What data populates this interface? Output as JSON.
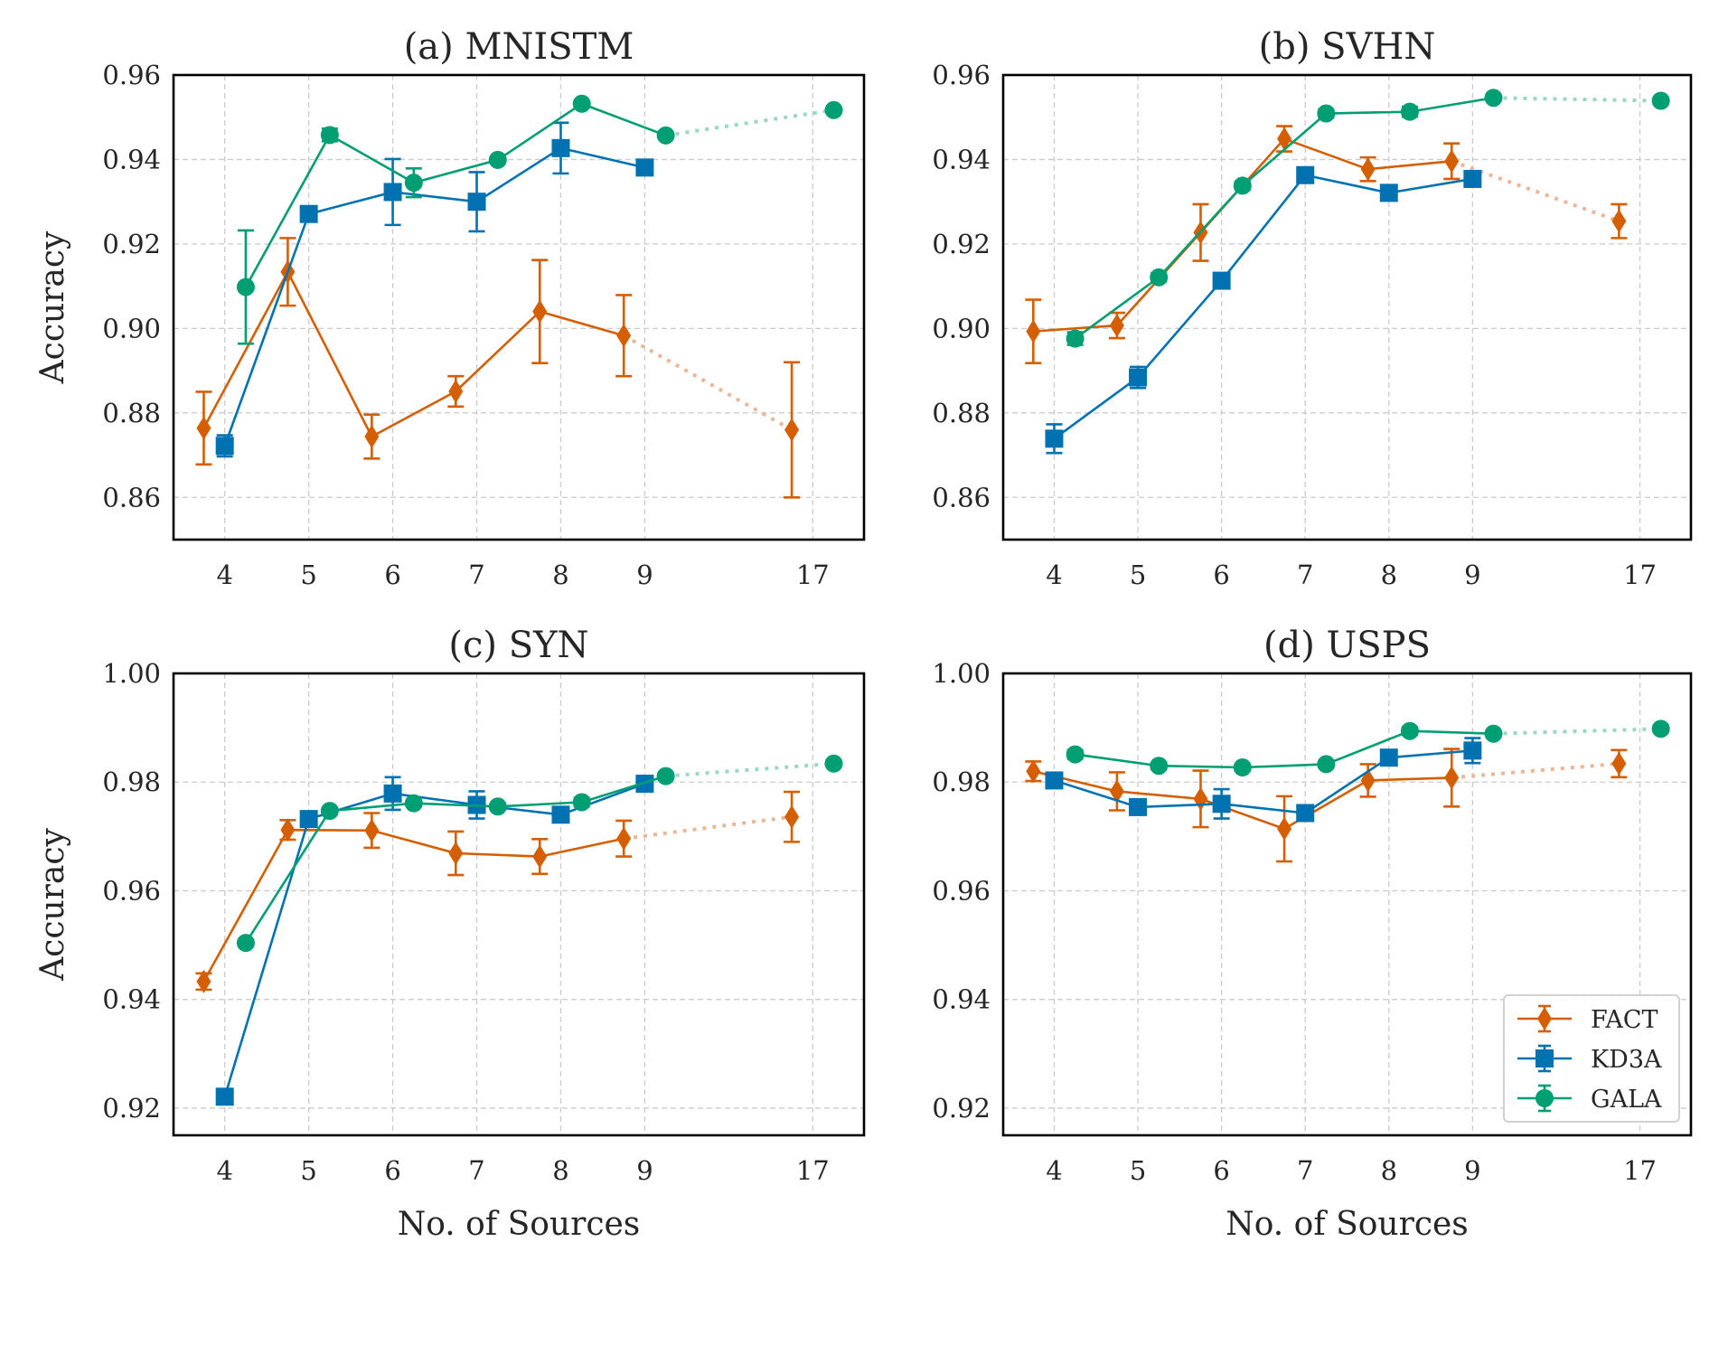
{
  "chart_data": [
    {
      "type": "line",
      "title": "(a) MNISTM",
      "xlabel": "",
      "ylabel": "Accuracy",
      "x_ticks": [
        "4",
        "5",
        "6",
        "7",
        "8",
        "9",
        "17"
      ],
      "y_ticks": [
        "0.86",
        "0.88",
        "0.90",
        "0.92",
        "0.94",
        "0.96"
      ],
      "ylim": [
        0.85,
        0.96
      ],
      "grid": true,
      "legend": null,
      "series": [
        {
          "name": "FACT",
          "x": [
            "4",
            "5",
            "6",
            "7",
            "8",
            "9",
            "17"
          ],
          "values": [
            0.8764,
            0.9134,
            0.8744,
            0.8851,
            0.904,
            0.8983,
            0.876
          ],
          "errors": [
            0.0086,
            0.008,
            0.0052,
            0.0036,
            0.0122,
            0.0096,
            0.016
          ]
        },
        {
          "name": "KD3A",
          "x": [
            "4",
            "5",
            "6",
            "7",
            "8",
            "9"
          ],
          "values": [
            0.8722,
            0.9271,
            0.9323,
            0.93,
            0.9427,
            0.9381
          ],
          "errors": [
            0.0025,
            0.0008,
            0.0078,
            0.007,
            0.006,
            0.0012
          ]
        },
        {
          "name": "GALA",
          "x": [
            "4",
            "5",
            "6",
            "7",
            "8",
            "9",
            "17"
          ],
          "values": [
            0.9098,
            0.9458,
            0.9345,
            0.9399,
            0.9532,
            0.9457,
            0.9517
          ],
          "errors": [
            0.0134,
            0.0015,
            0.0034,
            0.0006,
            0.0006,
            0.0006,
            0.0006
          ]
        }
      ]
    },
    {
      "type": "line",
      "title": "(b) SVHN",
      "xlabel": "",
      "ylabel": "",
      "x_ticks": [
        "4",
        "5",
        "6",
        "7",
        "8",
        "9",
        "17"
      ],
      "y_ticks": [
        "0.86",
        "0.88",
        "0.90",
        "0.92",
        "0.94",
        "0.96"
      ],
      "ylim": [
        0.85,
        0.96
      ],
      "grid": true,
      "legend": null,
      "series": [
        {
          "name": "FACT",
          "x": [
            "4",
            "5",
            "6",
            "7",
            "8",
            "9",
            "17"
          ],
          "values": [
            0.8993,
            0.9007,
            0.9227,
            0.9449,
            0.9377,
            0.9396,
            0.9254
          ],
          "errors": [
            0.0075,
            0.003,
            0.0067,
            0.003,
            0.0028,
            0.0042,
            0.004
          ]
        },
        {
          "name": "KD3A",
          "x": [
            "4",
            "5",
            "6",
            "7",
            "8",
            "9"
          ],
          "values": [
            0.8739,
            0.8884,
            0.9113,
            0.9363,
            0.9321,
            0.9354
          ],
          "errors": [
            0.0034,
            0.0025,
            0.0006,
            0.0015,
            0.0006,
            0.0006
          ]
        },
        {
          "name": "GALA",
          "x": [
            "4",
            "5",
            "6",
            "7",
            "8",
            "9",
            "17"
          ],
          "values": [
            0.8976,
            0.9121,
            0.9338,
            0.9509,
            0.9513,
            0.9546,
            0.9539
          ],
          "errors": [
            0.0015,
            0.001,
            0.001,
            0.001,
            0.0012,
            0.0006,
            0.0008
          ]
        }
      ]
    },
    {
      "type": "line",
      "title": "(c) SYN",
      "xlabel": "No. of Sources",
      "ylabel": "Accuracy",
      "x_ticks": [
        "4",
        "5",
        "6",
        "7",
        "8",
        "9",
        "17"
      ],
      "y_ticks": [
        "0.92",
        "0.94",
        "0.96",
        "0.98",
        "1.00"
      ],
      "ylim": [
        0.915,
        1.0
      ],
      "grid": true,
      "legend": null,
      "series": [
        {
          "name": "FACT",
          "x": [
            "4",
            "5",
            "6",
            "7",
            "8",
            "9",
            "17"
          ],
          "values": [
            0.9433,
            0.9712,
            0.9711,
            0.9669,
            0.9663,
            0.9696,
            0.9736
          ],
          "errors": [
            0.0015,
            0.0018,
            0.0032,
            0.004,
            0.0032,
            0.0033,
            0.0046
          ]
        },
        {
          "name": "KD3A",
          "x": [
            "4",
            "5",
            "6",
            "7",
            "8",
            "9"
          ],
          "values": [
            0.9221,
            0.9732,
            0.9779,
            0.9758,
            0.974,
            0.9797
          ],
          "errors": [
            0.0013,
            0.0006,
            0.003,
            0.0025,
            0.0008,
            0.0006
          ]
        },
        {
          "name": "GALA",
          "x": [
            "4",
            "5",
            "6",
            "7",
            "8",
            "9",
            "17"
          ],
          "values": [
            0.9504,
            0.9747,
            0.9761,
            0.9755,
            0.9763,
            0.9811,
            0.9834
          ],
          "errors": [
            0.0006,
            0.0006,
            0.0006,
            0.0006,
            0.0008,
            0.0006,
            0.0006
          ]
        }
      ]
    },
    {
      "type": "line",
      "title": "(d) USPS",
      "xlabel": "No. of Sources",
      "ylabel": "",
      "x_ticks": [
        "4",
        "5",
        "6",
        "7",
        "8",
        "9",
        "17"
      ],
      "y_ticks": [
        "0.92",
        "0.94",
        "0.96",
        "0.98",
        "1.00"
      ],
      "ylim": [
        0.915,
        1.0
      ],
      "grid": true,
      "legend": "lower-right",
      "series": [
        {
          "name": "FACT",
          "x": [
            "4",
            "5",
            "6",
            "7",
            "8",
            "9",
            "17"
          ],
          "values": [
            0.982,
            0.9783,
            0.9769,
            0.9714,
            0.9803,
            0.9808,
            0.9834
          ],
          "errors": [
            0.0018,
            0.0035,
            0.0052,
            0.006,
            0.003,
            0.0053,
            0.0025
          ]
        },
        {
          "name": "KD3A",
          "x": [
            "4",
            "5",
            "6",
            "7",
            "8",
            "9"
          ],
          "values": [
            0.9803,
            0.9754,
            0.976,
            0.9743,
            0.9845,
            0.9858
          ],
          "errors": [
            0.0006,
            0.0006,
            0.0027,
            0.0006,
            0.0006,
            0.0023
          ]
        },
        {
          "name": "GALA",
          "x": [
            "4",
            "5",
            "6",
            "7",
            "8",
            "9",
            "17"
          ],
          "values": [
            0.9851,
            0.983,
            0.9827,
            0.9833,
            0.9894,
            0.9889,
            0.9898
          ],
          "errors": [
            0.0008,
            0.0006,
            0.0006,
            0.0006,
            0.0007,
            0.0006,
            0.0006
          ]
        }
      ]
    }
  ],
  "legend": {
    "entries": [
      {
        "name": "FACT",
        "marker": "diamond",
        "color": "#d55e00"
      },
      {
        "name": "KD3A",
        "marker": "square",
        "color": "#0072b2"
      },
      {
        "name": "GALA",
        "marker": "circle",
        "color": "#009e73"
      }
    ]
  },
  "colors": {
    "FACT": "#d55e00",
    "KD3A": "#0072b2",
    "GALA": "#009e73",
    "FACT_dotted": "#eab799",
    "GALA_dotted": "#99d8c7"
  }
}
